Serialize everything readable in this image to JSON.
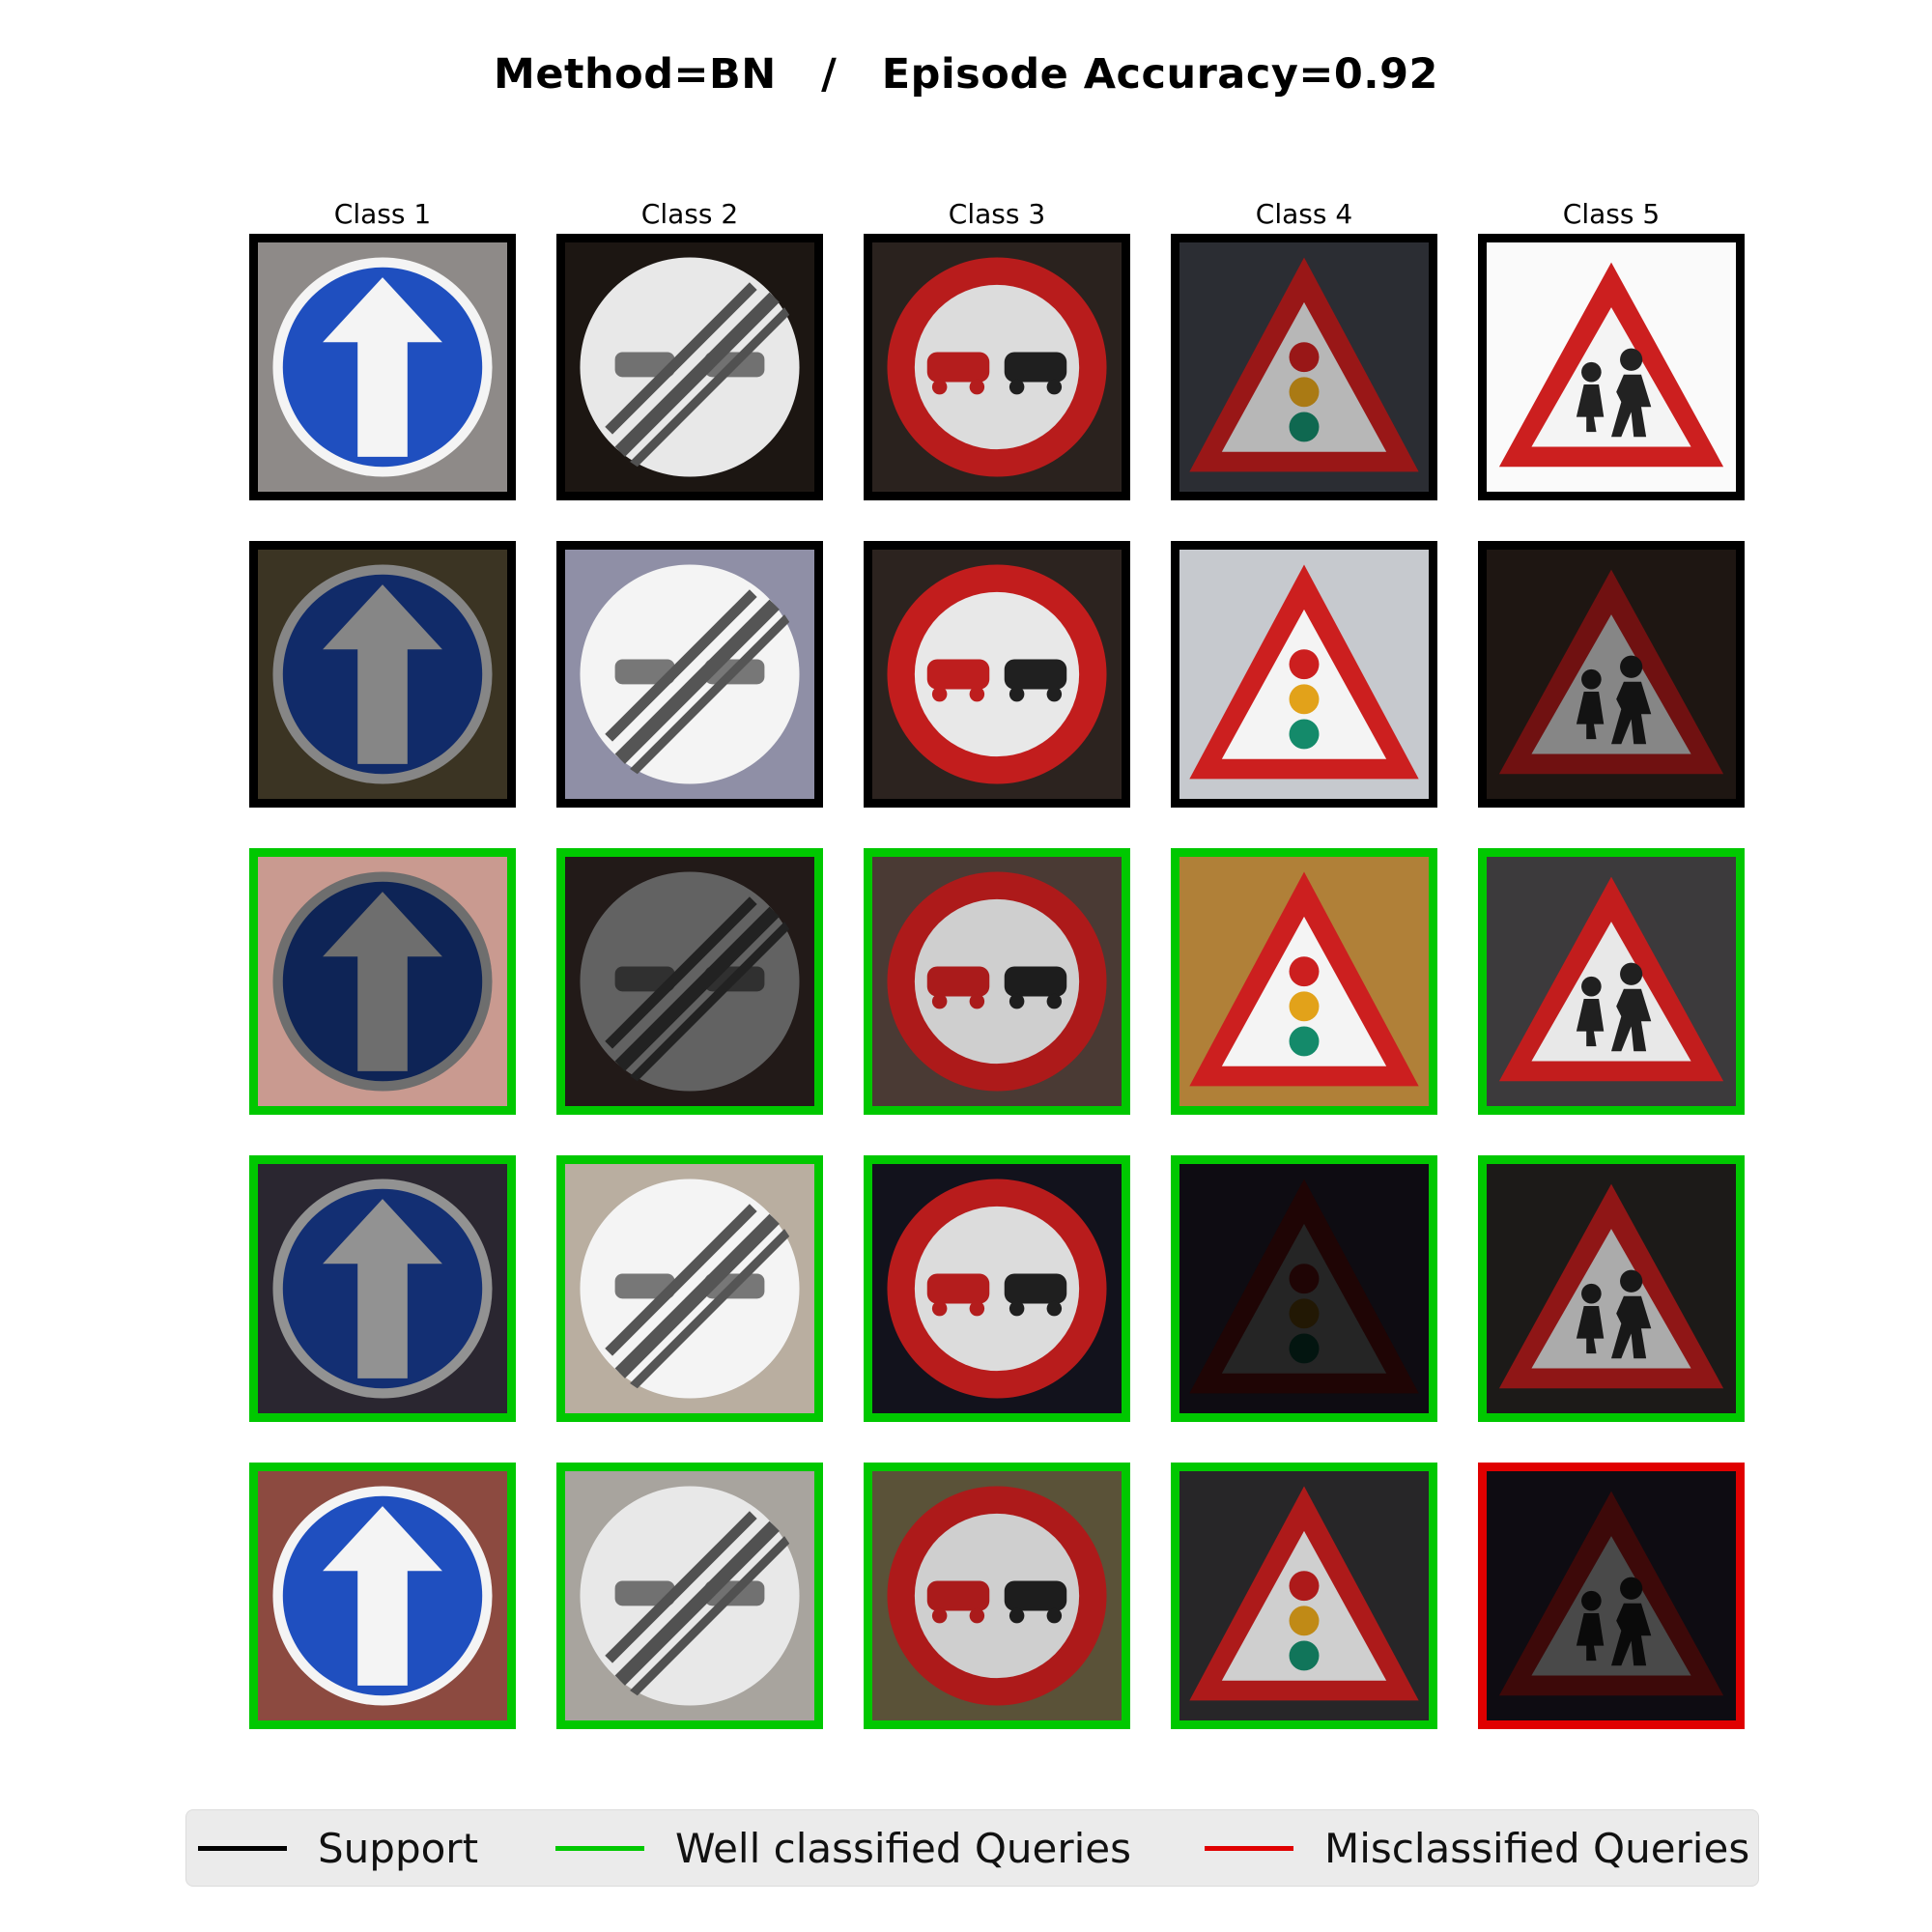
{
  "title": "Method=BN   /   Episode Accuracy=0.92",
  "colors": {
    "support": "#000000",
    "well": "#00c800",
    "mis": "#e00000"
  },
  "columns": [
    "Class 1",
    "Class 2",
    "Class 3",
    "Class 4",
    "Class 5"
  ],
  "rows": [
    {
      "role": "support",
      "cells": [
        {
          "icon": "ahead-only-sign-icon",
          "bg": "#8e8a88",
          "tone": 1.0
        },
        {
          "icon": "end-no-overtaking-sign-icon",
          "bg": "#1c1612",
          "tone": 0.95
        },
        {
          "icon": "no-overtaking-sign-icon",
          "bg": "#2a221e",
          "tone": 0.9
        },
        {
          "icon": "traffic-signals-warning-sign-icon",
          "bg": "#2b2d33",
          "tone": 0.75
        },
        {
          "icon": "children-crossing-warning-sign-icon",
          "bg": "#fafafa",
          "tone": 1.0
        }
      ]
    },
    {
      "role": "support",
      "cells": [
        {
          "icon": "ahead-only-sign-icon",
          "bg": "#3b3423",
          "tone": 0.55
        },
        {
          "icon": "end-no-overtaking-sign-icon",
          "bg": "#8f8fa6",
          "tone": 1.0
        },
        {
          "icon": "no-overtaking-sign-icon",
          "bg": "#2c231f",
          "tone": 0.95
        },
        {
          "icon": "traffic-signals-warning-sign-icon",
          "bg": "#c6c9ce",
          "tone": 1.0
        },
        {
          "icon": "children-crossing-warning-sign-icon",
          "bg": "#1e1612",
          "tone": 0.55
        }
      ]
    },
    {
      "role": "well",
      "cells": [
        {
          "icon": "ahead-only-sign-icon",
          "bg": "#c99a90",
          "tone": 0.45
        },
        {
          "icon": "end-no-overtaking-sign-icon",
          "bg": "#221a18",
          "tone": 0.4
        },
        {
          "icon": "no-overtaking-sign-icon",
          "bg": "#4a3a34",
          "tone": 0.85
        },
        {
          "icon": "traffic-signals-warning-sign-icon",
          "bg": "#b08038",
          "tone": 1.0
        },
        {
          "icon": "children-crossing-warning-sign-icon",
          "bg": "#3c3a3c",
          "tone": 0.95
        }
      ]
    },
    {
      "role": "well",
      "cells": [
        {
          "icon": "ahead-only-sign-icon",
          "bg": "#2a2630",
          "tone": 0.6
        },
        {
          "icon": "end-no-overtaking-sign-icon",
          "bg": "#b9aea0",
          "tone": 1.0
        },
        {
          "icon": "no-overtaking-sign-icon",
          "bg": "#12121c",
          "tone": 0.9
        },
        {
          "icon": "traffic-signals-warning-sign-icon",
          "bg": "#0e0c12",
          "tone": 0.15
        },
        {
          "icon": "children-crossing-warning-sign-icon",
          "bg": "#1c1a18",
          "tone": 0.7
        }
      ]
    },
    {
      "role": "well",
      "cells": [
        {
          "icon": "ahead-only-sign-icon",
          "bg": "#8c4a40",
          "tone": 1.0
        },
        {
          "icon": "end-no-overtaking-sign-icon",
          "bg": "#a8a49e",
          "tone": 0.95
        },
        {
          "icon": "no-overtaking-sign-icon",
          "bg": "#5a5238",
          "tone": 0.85
        },
        {
          "icon": "traffic-signals-warning-sign-icon",
          "bg": "#272628",
          "tone": 0.85
        },
        {
          "icon": "children-crossing-warning-sign-icon",
          "bg": "#0e0c12",
          "tone": 0.3
        }
      ]
    }
  ],
  "legend": [
    {
      "key": "support",
      "label": "Support"
    },
    {
      "key": "well",
      "label": "Well classified Queries"
    },
    {
      "key": "mis",
      "label": "Misclassified Queries"
    }
  ],
  "misclassified_cells": [
    [
      4,
      4
    ]
  ]
}
